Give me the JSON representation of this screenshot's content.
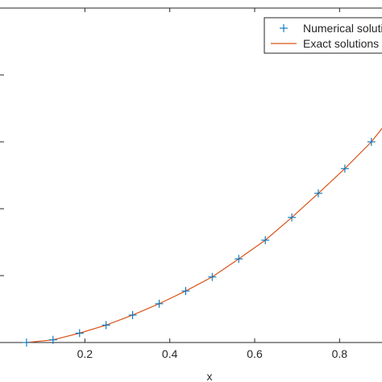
{
  "chart_data": {
    "type": "line",
    "xlabel": "x",
    "ylabel": "",
    "xlim": [
      0.0,
      0.9
    ],
    "ylim": [
      0.0,
      0.5
    ],
    "xticks": [
      0.2,
      0.4,
      0.6,
      0.8
    ],
    "xtick_labels": [
      "0.2",
      "0.4",
      "0.6",
      "0.8"
    ],
    "yticks": [
      0.1,
      0.2,
      0.3,
      0.4
    ],
    "grid": false,
    "legend_position": "top-right",
    "series": [
      {
        "name": "Numerical solutions",
        "marker": "plus",
        "color": "#0072BD",
        "x": [
          0.0625,
          0.125,
          0.1875,
          0.25,
          0.3125,
          0.375,
          0.4375,
          0.5,
          0.5625,
          0.625,
          0.6875,
          0.75,
          0.8125,
          0.875
        ],
        "y": [
          0.0,
          0.004,
          0.014,
          0.026,
          0.041,
          0.058,
          0.077,
          0.098,
          0.125,
          0.153,
          0.187,
          0.223,
          0.26,
          0.3
        ]
      },
      {
        "name": "Exact solutions",
        "marker": "none",
        "color": "#D95319",
        "x": [
          0.0625,
          0.125,
          0.1875,
          0.25,
          0.3125,
          0.375,
          0.4375,
          0.5,
          0.5625,
          0.625,
          0.6875,
          0.75,
          0.8125,
          0.875,
          0.9
        ],
        "y": [
          0.0,
          0.004,
          0.014,
          0.026,
          0.041,
          0.058,
          0.077,
          0.098,
          0.125,
          0.153,
          0.187,
          0.223,
          0.26,
          0.3,
          0.32
        ]
      }
    ]
  }
}
